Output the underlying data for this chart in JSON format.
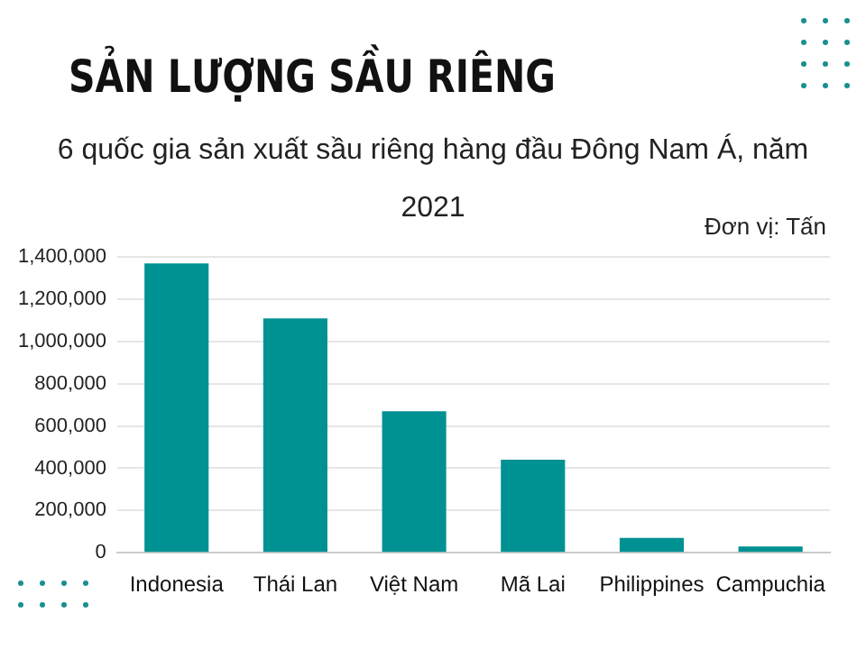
{
  "chart_data": {
    "type": "bar",
    "title": "SẢN LƯỢNG SẦU RIÊNG",
    "subtitle": "6 quốc gia sản xuất sầu riêng hàng đầu Đông Nam Á, năm 2021",
    "annotations": [
      "Đơn vị: Tấn"
    ],
    "categories": [
      "Indonesia",
      "Thái Lan",
      "Việt Nam",
      "Mã Lai",
      "Philippines",
      "Campuchia"
    ],
    "values": [
      1370000,
      1110000,
      670000,
      440000,
      70000,
      30000
    ],
    "color": "#009193",
    "ylim": [
      0,
      1400000
    ],
    "yticks": [
      0,
      {
        "value": 200000,
        "label": "200,000"
      },
      {
        "value": 400000,
        "label": "400,000"
      },
      {
        "value": 600000,
        "label": "600,000"
      },
      {
        "value": 800000,
        "label": "800,000"
      },
      {
        "value": 1000000,
        "label": "1,000,000"
      },
      {
        "value": 1200000,
        "label": "1,200,000"
      },
      {
        "value": 1400000,
        "label": "1,400,000"
      }
    ],
    "grid": "y",
    "legend": false
  }
}
